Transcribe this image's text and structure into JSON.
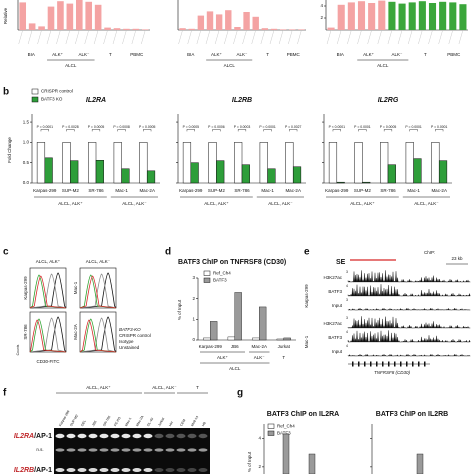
{
  "top": {
    "y_label": "Relative",
    "charts": [
      {
        "ylim": [
          0,
          5
        ],
        "values": [
          4.6,
          1.1,
          0.6,
          3.9,
          4.8,
          4.4,
          5,
          4.7,
          4.2,
          0.4,
          0.3,
          0.2,
          0.2,
          0.1
        ],
        "colors": [
          "#f4a3a3",
          "#f4a3a3",
          "#f4a3a3",
          "#f4a3a3",
          "#f4a3a3",
          "#f4a3a3",
          "#f4a3a3",
          "#f4a3a3",
          "#f4a3a3",
          "#f4a3a3",
          "#f4a3a3",
          "#f4a3a3",
          "#f4a3a3",
          "#f4a3a3"
        ],
        "groups": [
          "BIA",
          "ALK⁺",
          "ALK⁻",
          "T",
          "PBMC"
        ],
        "parent": "ALCL"
      },
      {
        "ylim": [
          0,
          5
        ],
        "values": [
          0.3,
          0.2,
          2.4,
          3.1,
          2.6,
          3.3,
          0.5,
          3.0,
          2.2,
          0.3,
          0.2,
          0.1,
          0.1,
          0.1
        ],
        "colors": [
          "#f4a3a3",
          "#f4a3a3",
          "#f4a3a3",
          "#f4a3a3",
          "#f4a3a3",
          "#f4a3a3",
          "#f4a3a3",
          "#f4a3a3",
          "#f4a3a3",
          "#f4a3a3",
          "#f4a3a3",
          "#f4a3a3",
          "#f4a3a3",
          "#f4a3a3"
        ],
        "groups": [
          "BIA",
          "ALK⁺",
          "ALK⁻",
          "T",
          "PBMC"
        ],
        "parent": "ALCL"
      },
      {
        "ylim": [
          0,
          5
        ],
        "yticks": [
          2,
          4
        ],
        "values": [
          0.4,
          4.2,
          4.6,
          4.8,
          4.5,
          4.9,
          4.7,
          4.4,
          4.6,
          4.8,
          4.5,
          4.7,
          4.6,
          4.3
        ],
        "colors": [
          "#f4a3a3",
          "#f4a3a3",
          "#f4a3a3",
          "#f4a3a3",
          "#f4a3a3",
          "#f4a3a3",
          "#3aa63a",
          "#3aa63a",
          "#3aa63a",
          "#3aa63a",
          "#3aa63a",
          "#3aa63a",
          "#3aa63a",
          "#3aa63a"
        ],
        "groups": [
          "BIA",
          "ALK⁺",
          "ALK⁻",
          "T",
          "PBMC"
        ],
        "parent": "ALCL"
      }
    ]
  },
  "panel_b": {
    "label": "b",
    "y_label": "Fold Change",
    "ylim": [
      0,
      1.6
    ],
    "yticks": [
      {
        "value": 0,
        "label": "0.0"
      },
      {
        "value": 0.5,
        "label": "0.5"
      },
      {
        "value": 1,
        "label": "1.0"
      },
      {
        "value": 1.5,
        "label": "1.5"
      }
    ],
    "legend": [
      {
        "name": "CRISPR control",
        "color": "#ffffff"
      },
      {
        "name": "BATF3 KO",
        "color": "#2e9e3a"
      }
    ],
    "categories": [
      "Karpas-299",
      "SUP-M2",
      "SR-786",
      "Mac-1",
      "Mac-2A"
    ],
    "groups": [
      "ALCL, ALK⁺",
      "ALCL, ALK⁻"
    ],
    "charts": [
      {
        "title": "IL2RA",
        "control": [
          1,
          1,
          1,
          1,
          1
        ],
        "ko": [
          0.62,
          0.55,
          0.56,
          0.35,
          0.3
        ],
        "pvalues": [
          "P = 0.0001",
          "P = 0.0028",
          "P = 0.0005",
          "P = 0.0008",
          "P = 0.0005"
        ]
      },
      {
        "title": "IL2RB",
        "control": [
          1,
          1,
          1,
          1,
          1
        ],
        "ko": [
          0.5,
          0.55,
          0.45,
          0.35,
          0.4
        ],
        "pvalues": [
          "P = 0.0005",
          "P = 0.0006",
          "P = 0.0003",
          "P = 0.0001",
          "P = 0.0027"
        ]
      },
      {
        "title": "IL2RG",
        "control": [
          1,
          1,
          1,
          1,
          1
        ],
        "ko": [
          0.02,
          0.02,
          0.45,
          0.6,
          0.55
        ],
        "pvalues": [
          "P < 0.0001",
          "P = 0.0001",
          "P = 0.0005",
          "P = 0.0001",
          "P = 0.0001"
        ]
      }
    ]
  },
  "panel_c": {
    "label": "c",
    "headers": [
      "ALCL, ALK⁺",
      "ALCL, ALK⁻"
    ],
    "cells": [
      "Karpas-299",
      "Mac-1",
      "SR-786",
      "Mac-2A"
    ],
    "legend": [
      {
        "name": "BATF3-KO",
        "color": "#d62728"
      },
      {
        "name": "CRISPR control",
        "color": "#2ca02c"
      },
      {
        "name": "Isotype",
        "color": "#888888"
      },
      {
        "name": "Unstained",
        "color": "#111111"
      }
    ],
    "y_label": "Counts",
    "x_label": "CD30-FITC"
  },
  "panel_d": {
    "label": "d",
    "title": "BATF3 ChIP on TNFRSF8 (CD30)",
    "y_label": "% of Input",
    "ylim": [
      0,
      3
    ],
    "yticks": [
      0,
      1,
      2,
      3
    ],
    "categories": [
      "Karpas-299",
      "JB6",
      "Mac-2A",
      "Jurkat"
    ],
    "series": [
      {
        "name": "Ref_Ch4",
        "color": "#ffffff",
        "values": [
          0.1,
          0.15,
          0.1,
          0.05
        ]
      },
      {
        "name": "BATF3",
        "color": "#9a9a9a",
        "values": [
          0.9,
          2.3,
          1.6,
          0.1
        ]
      }
    ],
    "groups": [
      "ALK⁺",
      "ALK⁻",
      "T"
    ],
    "parent": "ALCL"
  },
  "panel_e": {
    "label": "e",
    "chip": "ChIP:",
    "se": "SE",
    "scale": "23 kb",
    "samples": [
      "Karpas-299",
      "Mac-1"
    ],
    "tracks": [
      "H3K27ac",
      "BATF3",
      "Input",
      "H3K27ac",
      "BATF3",
      "Input"
    ],
    "track_max": [
      "3",
      "4",
      "3",
      "3",
      "4",
      "4"
    ],
    "gene": "TNFRSF8 (CD30)"
  },
  "panel_f": {
    "label": "f",
    "headers": [
      "ALCL, ALK⁺",
      "ALCL, ALK⁻",
      "T"
    ],
    "lanes": [
      "Karpas-299",
      "SUP-M2",
      "DEL",
      "JB6",
      "SR-786",
      "FE-PD",
      "Mac-1",
      "Mac-2A",
      "DL-40",
      "Jurkat",
      "HH",
      "CEM",
      "Molt-14",
      "H9"
    ],
    "rows": [
      {
        "gene": "IL2RA",
        "probe": "/AP-1"
      },
      {
        "gene": "IL2RB",
        "probe": "/AP-1"
      }
    ],
    "ns": "n.s."
  },
  "panel_g": {
    "label": "g",
    "y_label": "% of Input",
    "ylim": [
      1.5,
      5
    ],
    "yticks": [
      2,
      4
    ],
    "legend": [
      {
        "name": "Ref_Ch4",
        "color": "#ffffff"
      },
      {
        "name": "BATF3",
        "color": "#9a9a9a"
      }
    ],
    "charts": [
      {
        "title": "BATF3 ChIP on IL2RA",
        "values": [
          4.3,
          2.9
        ]
      },
      {
        "title": "BATF3 ChIP on IL2RB",
        "values": [
          2.9
        ]
      }
    ]
  }
}
